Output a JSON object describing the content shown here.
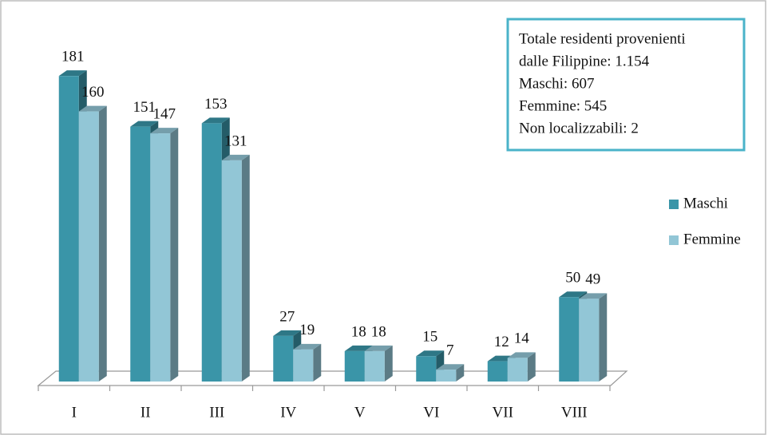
{
  "chart_data": {
    "type": "bar3d",
    "categories": [
      "I",
      "II",
      "III",
      "IV",
      "V",
      "VI",
      "VII",
      "VIII"
    ],
    "series": [
      {
        "name": "Maschi",
        "color": "#3a95a8",
        "values": [
          181,
          151,
          153,
          27,
          18,
          15,
          12,
          50
        ]
      },
      {
        "name": "Femmine",
        "color": "#92c6d6",
        "values": [
          160,
          147,
          131,
          19,
          18,
          7,
          14,
          49
        ]
      }
    ],
    "ylim": [
      0,
      200
    ],
    "annotation": [
      "Totale residenti provenienti",
      "dalle Filippine: 1.154",
      "Maschi: 607",
      "Femmine: 545",
      "Non localizzabili: 2"
    ]
  }
}
